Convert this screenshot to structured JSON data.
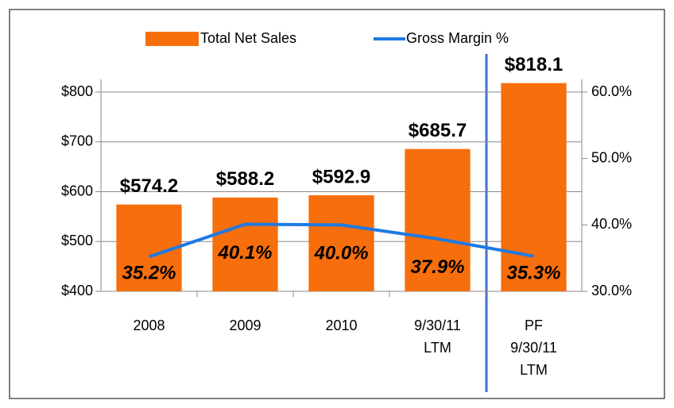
{
  "chart_data": {
    "type": "bar",
    "categories": [
      "2008",
      "2009",
      "2010",
      "9/30/11\nLTM",
      "PF\n9/30/11\nLTM"
    ],
    "series": [
      {
        "name": "Total Net Sales",
        "color": "#f76e0c",
        "values": [
          574.2,
          588.2,
          592.9,
          685.7,
          818.1
        ],
        "value_labels": [
          "$574.2",
          "$588.2",
          "$592.9",
          "$685.7",
          "$818.1"
        ]
      },
      {
        "name": "Gross Margin %",
        "type": "line",
        "axis": "y2",
        "color": "#1e7ae2",
        "values": [
          35.2,
          40.1,
          40.0,
          37.9,
          35.3
        ],
        "value_labels": [
          "35.2%",
          "40.1%",
          "40.0%",
          "37.9%",
          "35.3%"
        ]
      }
    ],
    "ylim": [
      400,
      800
    ],
    "yticks": [
      {
        "value": 400,
        "label": "$400"
      },
      {
        "value": 500,
        "label": "$500"
      },
      {
        "value": 600,
        "label": "$600"
      },
      {
        "value": 700,
        "label": "$700"
      },
      {
        "value": 800,
        "label": "$800"
      }
    ],
    "y2lim": [
      30,
      60
    ],
    "y2ticks": [
      {
        "value": 30,
        "label": "30.0%"
      },
      {
        "value": 40,
        "label": "40.0%"
      },
      {
        "value": 50,
        "label": "50.0%"
      },
      {
        "value": 60,
        "label": "60.0%"
      }
    ],
    "grid": true,
    "legend": "top"
  }
}
